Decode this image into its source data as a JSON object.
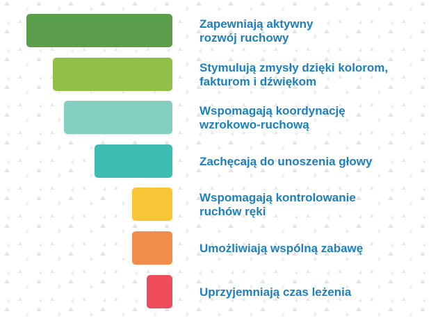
{
  "items": [
    {
      "lines": [
        "Zapewniają aktywny",
        "rozwój ruchowy"
      ]
    },
    {
      "lines": [
        "Stymulują zmysły dzięki kolorom,",
        "fakturom i dźwiękom"
      ]
    },
    {
      "lines": [
        "Wspomagają koordynację",
        "wzrokowo-ruchową"
      ]
    },
    {
      "lines": [
        "Zachęcają do unoszenia głowy"
      ]
    },
    {
      "lines": [
        "Wspomagają kontrolowanie",
        "ruchów ręki"
      ]
    },
    {
      "lines": [
        "Umożliwiają wspólną zabawę"
      ]
    },
    {
      "lines": [
        "Uprzyjemniają czas leżenia"
      ]
    }
  ]
}
